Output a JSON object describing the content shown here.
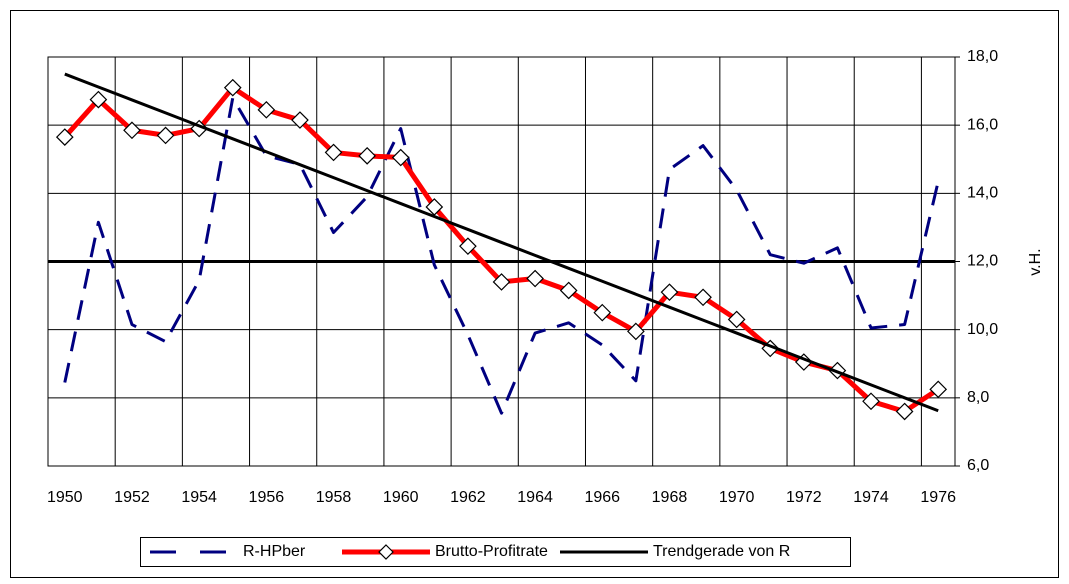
{
  "chart_data": {
    "type": "line",
    "categories": [
      "1950",
      null,
      "1952",
      null,
      "1954",
      null,
      "1956",
      null,
      "1958",
      null,
      "1960",
      null,
      "1962",
      null,
      "1964",
      null,
      "1966",
      null,
      "1968",
      null,
      "1970",
      null,
      "1972",
      null,
      "1974",
      null,
      "1976"
    ],
    "y_axis_label": "v.H.",
    "ylim": [
      6,
      18
    ],
    "yticks": [
      {
        "value": 6,
        "label": "6,0"
      },
      {
        "value": 8,
        "label": "8,0"
      },
      {
        "value": 10,
        "label": "10,0"
      },
      {
        "value": 12,
        "label": "12,0"
      },
      {
        "value": 14,
        "label": "14,0"
      },
      {
        "value": 16,
        "label": "16,0"
      },
      {
        "value": 18,
        "label": "18,0"
      }
    ],
    "grid": true,
    "reference_line": 12,
    "series": [
      {
        "name": "R-HPber",
        "color": "#000080",
        "style": "dashed",
        "values": [
          8.45,
          13.15,
          10.15,
          9.65,
          11.45,
          16.8,
          15.1,
          14.85,
          12.85,
          13.9,
          15.9,
          11.9,
          9.85,
          7.55,
          9.9,
          10.2,
          9.55,
          8.5,
          14.7,
          15.4,
          14.1,
          12.2,
          11.95,
          12.4,
          10.05,
          10.15,
          14.35
        ]
      },
      {
        "name": "Brutto-Profitrate",
        "color": "#ff0000",
        "style": "markers",
        "values": [
          15.65,
          16.75,
          15.85,
          15.7,
          15.9,
          17.1,
          16.45,
          16.15,
          15.2,
          15.1,
          15.05,
          13.6,
          12.45,
          11.4,
          11.5,
          11.15,
          10.5,
          9.95,
          11.1,
          10.95,
          10.3,
          9.45,
          9.05,
          8.8,
          7.9,
          7.6,
          8.25
        ]
      },
      {
        "name": "Trendgerade von R",
        "color": "#000000",
        "style": "solid",
        "values": [
          17.5,
          17.12,
          16.74,
          16.36,
          15.98,
          15.6,
          15.22,
          14.84,
          14.46,
          14.08,
          13.7,
          13.32,
          12.94,
          12.56,
          12.18,
          11.8,
          11.42,
          11.04,
          10.66,
          10.28,
          9.9,
          9.52,
          9.14,
          8.76,
          8.38,
          8.0,
          7.62
        ]
      }
    ]
  }
}
